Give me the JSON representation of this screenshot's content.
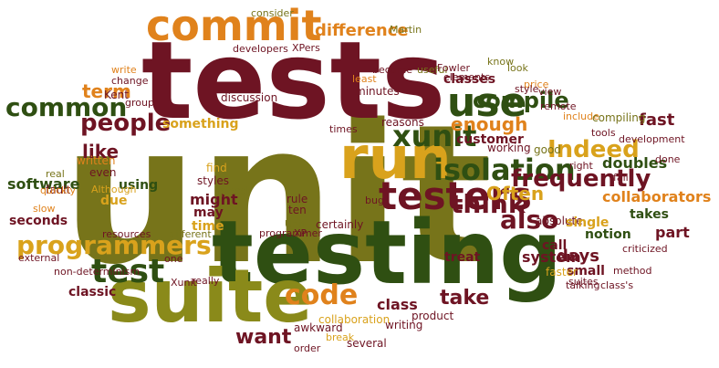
{
  "palette": {
    "dark_red": "#6e1423",
    "dark_green": "#2f4f12",
    "olive": "#77741a",
    "orange": "#e0821c",
    "gold": "#d9a21c",
    "light_olive": "#8a8a1a"
  },
  "words": [
    {
      "text": "unit",
      "color": "olive"
    },
    {
      "text": "tests",
      "color": "dark_red"
    },
    {
      "text": "testing",
      "color": "dark_green"
    },
    {
      "text": "suite",
      "color": "light_olive"
    },
    {
      "text": "commit",
      "color": "orange"
    },
    {
      "text": "run",
      "color": "gold"
    },
    {
      "text": "testers",
      "color": "dark_red"
    },
    {
      "text": "programmers",
      "color": "gold"
    },
    {
      "text": "test",
      "color": "dark_green"
    },
    {
      "text": "common",
      "color": "dark_green"
    },
    {
      "text": "people",
      "color": "dark_red"
    },
    {
      "text": "term",
      "color": "orange"
    },
    {
      "text": "use",
      "color": "dark_green"
    },
    {
      "text": "xunit",
      "color": "dark_green"
    },
    {
      "text": "isolation",
      "color": "dark_green"
    },
    {
      "text": "think",
      "color": "dark_red"
    },
    {
      "text": "also",
      "color": "dark_red"
    },
    {
      "text": "code",
      "color": "orange"
    },
    {
      "text": "want",
      "color": "dark_red"
    },
    {
      "text": "take",
      "color": "dark_red"
    },
    {
      "text": "Indeed",
      "color": "gold"
    },
    {
      "text": "frequently",
      "color": "dark_red"
    },
    {
      "text": "compile",
      "color": "dark_green"
    },
    {
      "text": "enough",
      "color": "orange"
    },
    {
      "text": "like",
      "color": "dark_red"
    },
    {
      "text": "difference",
      "color": "orange"
    },
    {
      "text": "classes",
      "color": "dark_red"
    },
    {
      "text": "customer",
      "color": "dark_red"
    },
    {
      "text": "Often",
      "color": "gold"
    },
    {
      "text": "fast",
      "color": "dark_red"
    },
    {
      "text": "collaborators",
      "color": "orange"
    },
    {
      "text": "days",
      "color": "dark_red"
    },
    {
      "text": "doubles",
      "color": "dark_green"
    },
    {
      "text": "class",
      "color": "dark_red"
    },
    {
      "text": "something",
      "color": "gold"
    },
    {
      "text": "might",
      "color": "dark_red"
    },
    {
      "text": "may",
      "color": "dark_red"
    },
    {
      "text": "time",
      "color": "gold"
    },
    {
      "text": "software",
      "color": "dark_green"
    },
    {
      "text": "seconds",
      "color": "dark_red"
    },
    {
      "text": "using",
      "color": "dark_green"
    },
    {
      "text": "due",
      "color": "gold"
    },
    {
      "text": "classic",
      "color": "dark_red"
    },
    {
      "text": "system",
      "color": "dark_red"
    },
    {
      "text": "part",
      "color": "dark_red"
    },
    {
      "text": "treat",
      "color": "dark_red"
    },
    {
      "text": "small",
      "color": "dark_red"
    },
    {
      "text": "notion",
      "color": "dark_green"
    },
    {
      "text": "call",
      "color": "dark_red"
    },
    {
      "text": "takes",
      "color": "dark_green"
    },
    {
      "text": "working",
      "color": "dark_red"
    },
    {
      "text": "good",
      "color": "olive"
    },
    {
      "text": "Kent",
      "color": "dark_red"
    },
    {
      "text": "written",
      "color": "orange"
    },
    {
      "text": "fault",
      "color": "dark_red"
    },
    {
      "text": "even",
      "color": "dark_red"
    },
    {
      "text": "Although",
      "color": "gold"
    },
    {
      "text": "find",
      "color": "gold"
    },
    {
      "text": "styles",
      "color": "dark_red"
    },
    {
      "text": "speed",
      "color": "olive"
    },
    {
      "text": "rule",
      "color": "dark_red"
    },
    {
      "text": "ten",
      "color": "dark_red"
    },
    {
      "text": "Unit",
      "color": "olive"
    },
    {
      "text": "XP",
      "color": "dark_red"
    },
    {
      "text": "certainly",
      "color": "dark_red"
    },
    {
      "text": "consider",
      "color": "olive"
    },
    {
      "text": "developers",
      "color": "dark_red"
    },
    {
      "text": "XPers",
      "color": "dark_red"
    },
    {
      "text": "Martin",
      "color": "olive"
    },
    {
      "text": "became",
      "color": "dark_red"
    },
    {
      "text": "useful",
      "color": "olive"
    },
    {
      "text": "Fowler",
      "color": "dark_red"
    },
    {
      "text": "elements",
      "color": "dark_red"
    },
    {
      "text": "know",
      "color": "olive"
    },
    {
      "text": "look",
      "color": "olive"
    },
    {
      "text": "write",
      "color": "orange"
    },
    {
      "text": "change",
      "color": "dark_red"
    },
    {
      "text": "group",
      "color": "dark_red"
    },
    {
      "text": "discussion",
      "color": "dark_red"
    },
    {
      "text": "least",
      "color": "orange"
    },
    {
      "text": "minutes",
      "color": "dark_red"
    },
    {
      "text": "price",
      "color": "orange"
    },
    {
      "text": "view",
      "color": "dark_red"
    },
    {
      "text": "style",
      "color": "dark_red"
    },
    {
      "text": "remote",
      "color": "dark_red"
    },
    {
      "text": "reasons",
      "color": "dark_red"
    },
    {
      "text": "times",
      "color": "dark_red"
    },
    {
      "text": "include",
      "color": "orange"
    },
    {
      "text": "compiling",
      "color": "olive"
    },
    {
      "text": "tools",
      "color": "dark_red"
    },
    {
      "text": "right",
      "color": "dark_red"
    },
    {
      "text": "development",
      "color": "dark_red"
    },
    {
      "text": "done",
      "color": "dark_red"
    },
    {
      "text": "fail",
      "color": "dark_red"
    },
    {
      "text": "absolute",
      "color": "dark_red"
    },
    {
      "text": "single",
      "color": "gold"
    },
    {
      "text": "criticized",
      "color": "dark_red"
    },
    {
      "text": "method",
      "color": "dark_red"
    },
    {
      "text": "class's",
      "color": "dark_red"
    },
    {
      "text": "talking",
      "color": "dark_red"
    },
    {
      "text": "faster",
      "color": "gold"
    },
    {
      "text": "suites",
      "color": "dark_red"
    },
    {
      "text": "product",
      "color": "dark_red"
    },
    {
      "text": "writing",
      "color": "dark_red"
    },
    {
      "text": "several",
      "color": "dark_red"
    },
    {
      "text": "collaboration",
      "color": "gold"
    },
    {
      "text": "awkward",
      "color": "dark_red"
    },
    {
      "text": "break",
      "color": "gold"
    },
    {
      "text": "order",
      "color": "dark_red"
    },
    {
      "text": "bug",
      "color": "dark_red"
    },
    {
      "text": "programmer",
      "color": "dark_red"
    },
    {
      "text": "one",
      "color": "dark_red"
    },
    {
      "text": "really",
      "color": "dark_red"
    },
    {
      "text": "Xunit",
      "color": "dark_red"
    },
    {
      "text": "different",
      "color": "olive"
    },
    {
      "text": "resources",
      "color": "dark_red"
    },
    {
      "text": "external",
      "color": "dark_red"
    },
    {
      "text": "non-determinism",
      "color": "dark_red"
    },
    {
      "text": "real",
      "color": "olive"
    },
    {
      "text": "quickly",
      "color": "orange"
    },
    {
      "text": "slow",
      "color": "orange"
    }
  ]
}
